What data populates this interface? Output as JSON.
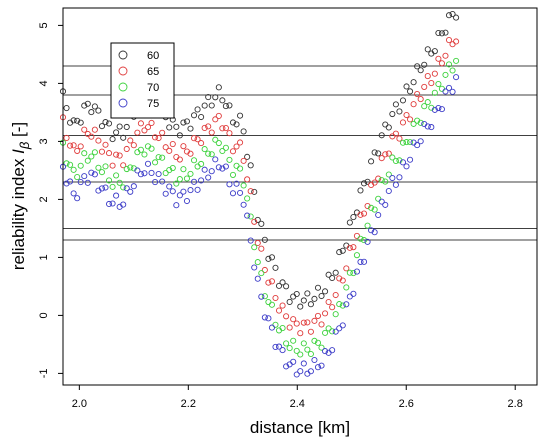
{
  "chart_data": {
    "type": "scatter",
    "xlabel": "distance [km]",
    "ylabel_main": "reliability index ",
    "ylabel_symbol": "I",
    "ylabel_subscript": "β",
    "ylabel_unit": " [-]",
    "xlim": [
      1.97,
      2.84
    ],
    "ylim": [
      -1.2,
      5.3
    ],
    "x_ticks": [
      2.0,
      2.2,
      2.4,
      2.6,
      2.8
    ],
    "x_tick_labels": [
      "2.0",
      "2.2",
      "2.4",
      "2.6",
      "2.8"
    ],
    "y_ticks": [
      -1,
      0,
      1,
      2,
      3,
      4,
      5
    ],
    "y_tick_labels": [
      "-1",
      "0",
      "1",
      "2",
      "3",
      "4",
      "5"
    ],
    "hlines": [
      4.3,
      3.8,
      3.1,
      2.3,
      1.5,
      1.3
    ],
    "grid": false,
    "legend": {
      "position": "top-left",
      "entries": [
        "60",
        "65",
        "70",
        "75"
      ]
    },
    "colors": {
      "60": "#333333",
      "65": "#e03c3c",
      "70": "#3cd23c",
      "75": "#3c3cc8"
    },
    "series": [
      {
        "name": "60",
        "offset": 0
      },
      {
        "name": "65",
        "offset": -0.45
      },
      {
        "name": "70",
        "offset": -0.85
      },
      {
        "name": "75",
        "offset": -1.2
      }
    ],
    "profile": {
      "x": [
        1.97,
        1.99,
        2.01,
        2.02,
        2.04,
        2.06,
        2.08,
        2.1,
        2.12,
        2.14,
        2.16,
        2.18,
        2.2,
        2.22,
        2.24,
        2.26,
        2.28,
        2.3,
        2.31,
        2.32,
        2.33,
        2.35,
        2.37,
        2.39,
        2.41,
        2.43,
        2.45,
        2.47,
        2.49,
        2.51,
        2.53,
        2.55,
        2.57,
        2.59,
        2.61,
        2.63,
        2.65,
        2.67,
        2.69
      ],
      "y": [
        3.75,
        3.25,
        3.55,
        3.65,
        3.4,
        3.15,
        3.15,
        3.5,
        3.75,
        3.6,
        3.4,
        3.2,
        3.3,
        3.5,
        3.7,
        3.85,
        3.4,
        3.3,
        2.7,
        2.2,
        1.6,
        1.0,
        0.55,
        0.3,
        0.25,
        0.3,
        0.45,
        0.8,
        1.3,
        1.9,
        2.45,
        2.95,
        3.4,
        3.65,
        4.0,
        4.35,
        4.6,
        4.95,
        5.25
      ]
    }
  }
}
